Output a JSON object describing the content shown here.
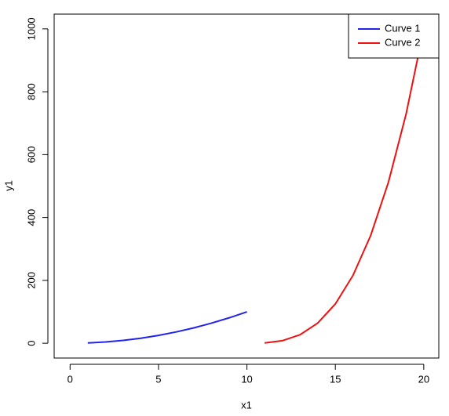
{
  "chart_data": {
    "type": "line",
    "xlabel": "x1",
    "ylabel": "y1",
    "series": [
      {
        "name": "Curve 1",
        "color": "#2222ee",
        "x": [
          1,
          2,
          3,
          4,
          5,
          6,
          7,
          8,
          9,
          10
        ],
        "values": [
          1,
          4,
          9,
          16,
          25,
          36,
          49,
          64,
          81,
          100
        ]
      },
      {
        "name": "Curve 2",
        "color": "#ee1111",
        "x": [
          11,
          12,
          13,
          14,
          15,
          16,
          17,
          18,
          19,
          20
        ],
        "values": [
          1,
          8,
          27,
          64,
          125,
          216,
          343,
          512,
          729,
          1000
        ]
      }
    ],
    "xlim": [
      -0.9,
      20.85
    ],
    "xticks": [
      0,
      5,
      10,
      15,
      20
    ],
    "ylim": [
      -47,
      1047
    ],
    "yticks": [
      0,
      200,
      400,
      600,
      800,
      1000
    ],
    "legend": "top-right"
  }
}
